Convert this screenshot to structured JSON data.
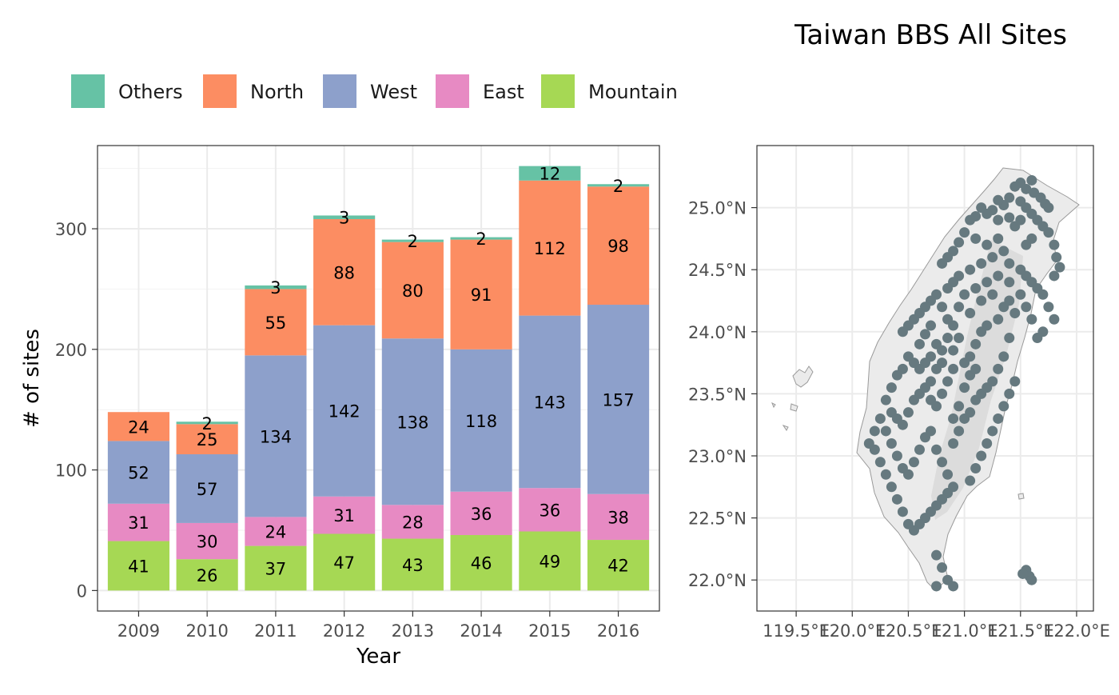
{
  "title": "Taiwan BBS All Sites",
  "legend": {
    "placement": "top-left",
    "items": [
      {
        "label": "Others",
        "color": "#66c2a5"
      },
      {
        "label": "North",
        "color": "#fc8d62"
      },
      {
        "label": "West",
        "color": "#8da0cb"
      },
      {
        "label": "East",
        "color": "#e78ac3"
      },
      {
        "label": "Mountain",
        "color": "#a6d854"
      }
    ]
  },
  "chart_data": [
    {
      "type": "bar",
      "stacked": true,
      "xlabel": "Year",
      "ylabel": "# of sites",
      "ylim": [
        -17,
        369
      ],
      "yticks": [
        0,
        100,
        200,
        300
      ],
      "grid": true,
      "categories": [
        "2009",
        "2010",
        "2011",
        "2012",
        "2013",
        "2014",
        "2015",
        "2016"
      ],
      "series": [
        {
          "name": "Mountain",
          "color": "#a6d854",
          "values": [
            41,
            26,
            37,
            47,
            43,
            46,
            49,
            42
          ],
          "labels": [
            "41",
            "26",
            "37",
            "47",
            "43",
            "46",
            "49",
            "42"
          ]
        },
        {
          "name": "East",
          "color": "#e78ac3",
          "values": [
            31,
            30,
            24,
            31,
            28,
            36,
            36,
            38
          ],
          "labels": [
            "31",
            "30",
            "24",
            "31",
            "28",
            "36",
            "36",
            "38"
          ]
        },
        {
          "name": "West",
          "color": "#8da0cb",
          "values": [
            52,
            57,
            134,
            142,
            138,
            118,
            143,
            157
          ],
          "labels": [
            "52",
            "57",
            "134",
            "142",
            "138",
            "118",
            "143",
            "157"
          ]
        },
        {
          "name": "North",
          "color": "#fc8d62",
          "values": [
            24,
            25,
            55,
            88,
            80,
            91,
            112,
            98
          ],
          "labels": [
            "24",
            "25",
            "55",
            "88",
            "80",
            "91",
            "112",
            "98"
          ]
        },
        {
          "name": "Others",
          "color": "#66c2a5",
          "values": [
            0,
            2,
            3,
            3,
            2,
            2,
            12,
            2
          ],
          "labels": [
            "",
            "2",
            "3",
            "3",
            "2",
            "2",
            "12",
            "2"
          ]
        }
      ]
    },
    {
      "type": "scatter",
      "subtype": "map",
      "xticks": [
        "119.5°E",
        "120.0°E",
        "120.5°E",
        "121.0°E",
        "121.5°E",
        "122.0°E"
      ],
      "yticks": [
        "22.0°N",
        "22.5°N",
        "23.0°N",
        "23.5°N",
        "24.0°N",
        "24.5°N",
        "25.0°N"
      ],
      "xlim": [
        119.15,
        122.15
      ],
      "ylim": [
        21.75,
        25.5
      ],
      "grid": true,
      "point_color": "#66797f",
      "points": [
        [
          121.5,
          25.2
        ],
        [
          121.55,
          25.15
        ],
        [
          121.6,
          25.22
        ],
        [
          121.45,
          25.17
        ],
        [
          121.62,
          25.12
        ],
        [
          121.5,
          25.05
        ],
        [
          121.55,
          25.0
        ],
        [
          121.4,
          25.08
        ],
        [
          121.35,
          25.02
        ],
        [
          121.3,
          25.06
        ],
        [
          121.68,
          25.08
        ],
        [
          121.72,
          25.03
        ],
        [
          121.75,
          25.0
        ],
        [
          121.25,
          24.98
        ],
        [
          121.2,
          24.95
        ],
        [
          121.15,
          25.0
        ],
        [
          121.1,
          24.93
        ],
        [
          121.05,
          24.9
        ],
        [
          121.3,
          24.9
        ],
        [
          121.4,
          24.92
        ],
        [
          121.45,
          24.85
        ],
        [
          121.5,
          24.9
        ],
        [
          121.6,
          24.95
        ],
        [
          121.65,
          24.9
        ],
        [
          121.7,
          24.85
        ],
        [
          121.75,
          24.8
        ],
        [
          121.8,
          24.7
        ],
        [
          121.82,
          24.6
        ],
        [
          121.85,
          24.52
        ],
        [
          121.8,
          24.45
        ],
        [
          121.0,
          24.8
        ],
        [
          120.95,
          24.72
        ],
        [
          120.9,
          24.65
        ],
        [
          120.85,
          24.6
        ],
        [
          120.8,
          24.55
        ],
        [
          121.1,
          24.75
        ],
        [
          121.2,
          24.7
        ],
        [
          121.3,
          24.75
        ],
        [
          121.35,
          24.65
        ],
        [
          121.25,
          24.6
        ],
        [
          121.15,
          24.55
        ],
        [
          121.05,
          24.5
        ],
        [
          120.95,
          24.45
        ],
        [
          120.9,
          24.4
        ],
        [
          121.4,
          24.55
        ],
        [
          121.5,
          24.5
        ],
        [
          121.55,
          24.45
        ],
        [
          121.6,
          24.4
        ],
        [
          121.65,
          24.35
        ],
        [
          121.7,
          24.3
        ],
        [
          121.75,
          24.2
        ],
        [
          121.8,
          24.1
        ],
        [
          121.7,
          24.0
        ],
        [
          121.65,
          23.95
        ],
        [
          120.75,
          24.3
        ],
        [
          120.7,
          24.25
        ],
        [
          120.65,
          24.2
        ],
        [
          120.6,
          24.15
        ],
        [
          120.55,
          24.1
        ],
        [
          120.5,
          24.05
        ],
        [
          120.45,
          24.0
        ],
        [
          120.8,
          24.2
        ],
        [
          120.85,
          24.1
        ],
        [
          120.9,
          24.05
        ],
        [
          120.95,
          23.95
        ],
        [
          120.7,
          24.05
        ],
        [
          120.65,
          23.98
        ],
        [
          120.6,
          23.9
        ],
        [
          120.75,
          23.9
        ],
        [
          120.8,
          23.85
        ],
        [
          120.7,
          23.8
        ],
        [
          120.65,
          23.75
        ],
        [
          120.6,
          23.7
        ],
        [
          120.55,
          23.75
        ],
        [
          120.5,
          23.8
        ],
        [
          120.45,
          23.7
        ],
        [
          120.4,
          23.65
        ],
        [
          120.35,
          23.55
        ],
        [
          120.3,
          23.45
        ],
        [
          120.35,
          23.35
        ],
        [
          120.4,
          23.3
        ],
        [
          120.45,
          23.25
        ],
        [
          120.5,
          23.35
        ],
        [
          120.55,
          23.45
        ],
        [
          120.6,
          23.5
        ],
        [
          120.65,
          23.55
        ],
        [
          120.7,
          23.45
        ],
        [
          120.75,
          23.4
        ],
        [
          120.8,
          23.5
        ],
        [
          120.85,
          23.6
        ],
        [
          120.9,
          23.7
        ],
        [
          121.0,
          23.75
        ],
        [
          121.05,
          23.8
        ],
        [
          121.1,
          23.9
        ],
        [
          121.15,
          24.0
        ],
        [
          121.2,
          24.05
        ],
        [
          121.3,
          24.1
        ],
        [
          121.35,
          24.2
        ],
        [
          121.4,
          24.25
        ],
        [
          121.45,
          24.15
        ],
        [
          121.4,
          23.95
        ],
        [
          121.35,
          23.8
        ],
        [
          121.3,
          23.7
        ],
        [
          121.45,
          23.6
        ],
        [
          121.4,
          23.5
        ],
        [
          121.35,
          23.4
        ],
        [
          121.3,
          23.3
        ],
        [
          121.25,
          23.2
        ],
        [
          121.2,
          23.1
        ],
        [
          121.15,
          23.0
        ],
        [
          121.1,
          22.9
        ],
        [
          121.05,
          22.8
        ],
        [
          120.9,
          22.75
        ],
        [
          120.85,
          22.7
        ],
        [
          120.8,
          22.65
        ],
        [
          120.75,
          22.6
        ],
        [
          120.7,
          22.55
        ],
        [
          120.65,
          22.5
        ],
        [
          120.6,
          22.45
        ],
        [
          120.55,
          22.4
        ],
        [
          120.5,
          22.45
        ],
        [
          120.45,
          22.55
        ],
        [
          120.4,
          22.65
        ],
        [
          120.35,
          22.75
        ],
        [
          120.3,
          22.85
        ],
        [
          120.25,
          22.95
        ],
        [
          120.2,
          23.05
        ],
        [
          120.15,
          23.1
        ],
        [
          120.2,
          23.2
        ],
        [
          120.25,
          23.3
        ],
        [
          120.3,
          23.2
        ],
        [
          120.35,
          23.1
        ],
        [
          120.4,
          23.0
        ],
        [
          120.45,
          22.9
        ],
        [
          120.5,
          22.85
        ],
        [
          120.55,
          22.95
        ],
        [
          120.6,
          23.05
        ],
        [
          120.65,
          23.15
        ],
        [
          120.7,
          23.2
        ],
        [
          120.75,
          23.05
        ],
        [
          120.8,
          22.95
        ],
        [
          120.85,
          22.85
        ],
        [
          120.9,
          23.1
        ],
        [
          120.95,
          23.2
        ],
        [
          121.0,
          23.3
        ],
        [
          121.05,
          23.35
        ],
        [
          121.1,
          23.45
        ],
        [
          121.15,
          23.5
        ],
        [
          121.2,
          23.55
        ],
        [
          121.25,
          23.6
        ],
        [
          120.75,
          22.2
        ],
        [
          120.8,
          22.1
        ],
        [
          120.85,
          22.0
        ],
        [
          120.9,
          21.95
        ],
        [
          120.75,
          21.95
        ],
        [
          121.55,
          22.08
        ],
        [
          121.58,
          22.03
        ],
        [
          121.52,
          22.05
        ],
        [
          121.6,
          22.0
        ],
        [
          121.0,
          24.3
        ],
        [
          121.1,
          24.35
        ],
        [
          121.2,
          24.4
        ],
        [
          121.3,
          24.45
        ],
        [
          120.95,
          24.2
        ],
        [
          121.05,
          24.15
        ],
        [
          121.15,
          24.25
        ],
        [
          121.25,
          24.3
        ],
        [
          120.85,
          24.35
        ],
        [
          121.55,
          24.7
        ],
        [
          121.6,
          24.75
        ],
        [
          121.4,
          24.4
        ],
        [
          121.5,
          24.3
        ],
        [
          121.55,
          24.2
        ],
        [
          121.6,
          24.1
        ],
        [
          120.7,
          23.6
        ],
        [
          120.75,
          23.7
        ],
        [
          120.8,
          23.75
        ],
        [
          120.9,
          23.85
        ],
        [
          120.85,
          23.95
        ],
        [
          121.0,
          23.55
        ],
        [
          121.05,
          23.65
        ],
        [
          121.1,
          23.7
        ],
        [
          120.95,
          23.4
        ],
        [
          120.9,
          23.3
        ]
      ]
    }
  ]
}
